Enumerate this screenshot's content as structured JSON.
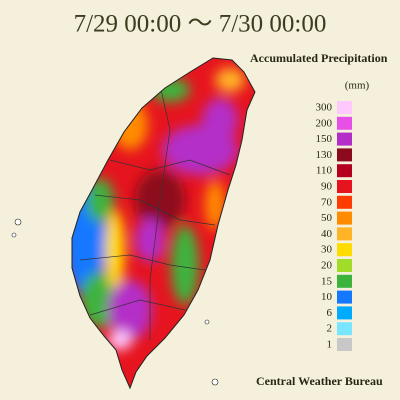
{
  "header": {
    "title": "7/29 00:00 ～ 7/30 00:00"
  },
  "legend": {
    "title": "Accumulated Precipitation",
    "unit": "(mm)",
    "items": [
      {
        "label": "300",
        "color": "#ffc8ff"
      },
      {
        "label": "200",
        "color": "#e650e6"
      },
      {
        "label": "150",
        "color": "#b42dc8"
      },
      {
        "label": "130",
        "color": "#8c0a1e"
      },
      {
        "label": "110",
        "color": "#b4001e"
      },
      {
        "label": "90",
        "color": "#e6141e"
      },
      {
        "label": "70",
        "color": "#ff3c00"
      },
      {
        "label": "50",
        "color": "#ff8c00"
      },
      {
        "label": "40",
        "color": "#ffb428"
      },
      {
        "label": "30",
        "color": "#ffdc00"
      },
      {
        "label": "20",
        "color": "#a0dc28"
      },
      {
        "label": "15",
        "color": "#3cb43c"
      },
      {
        "label": "10",
        "color": "#1478ff"
      },
      {
        "label": "6",
        "color": "#00aaff"
      },
      {
        "label": "2",
        "color": "#78e6ff"
      },
      {
        "label": "1",
        "color": "#c8c8c8"
      }
    ]
  },
  "footer": {
    "credit": "Central Weather Bureau"
  }
}
